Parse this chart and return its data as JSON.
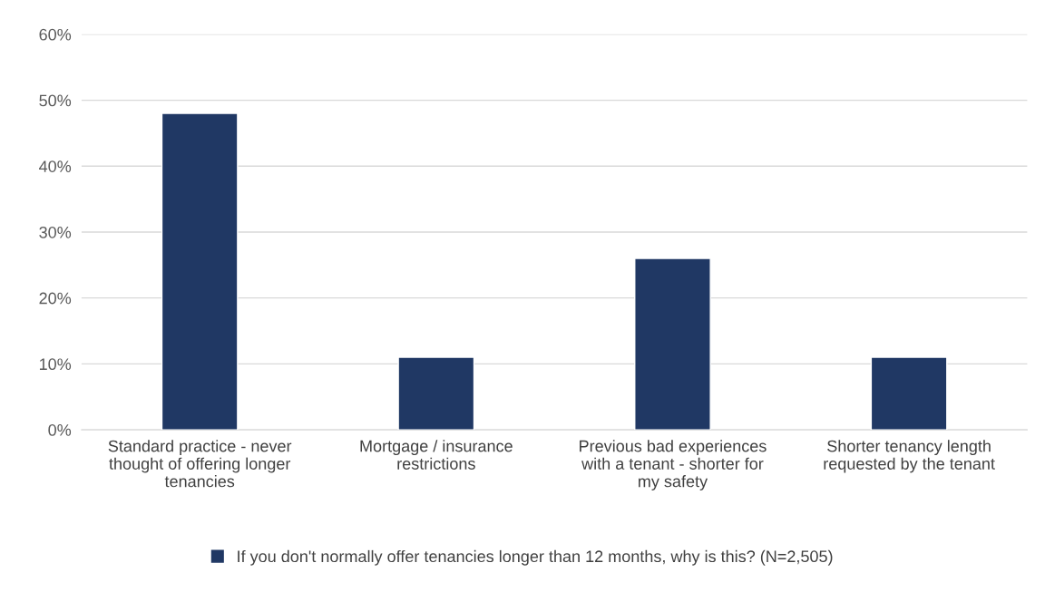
{
  "chart_data": {
    "type": "bar",
    "categories": [
      "Standard practice - never\nthought of offering longer\ntenancies",
      "Mortgage / insurance\nrestrictions",
      "Previous bad experiences\nwith a tenant - shorter for\nmy safety",
      "Shorter tenancy length\nrequested by the tenant"
    ],
    "series": [
      {
        "name": "If you don't normally offer tenancies longer than 12 months, why is this? (N=2,505)",
        "color": "#203864",
        "values": [
          48,
          11,
          26,
          11
        ]
      }
    ],
    "ylim": [
      0,
      60
    ],
    "yticks": [
      {
        "value": 0,
        "label": "0%"
      },
      {
        "value": 10,
        "label": "10%"
      },
      {
        "value": 20,
        "label": "20%"
      },
      {
        "value": 30,
        "label": "30%"
      },
      {
        "value": 40,
        "label": "40%"
      },
      {
        "value": 50,
        "label": "50%"
      },
      {
        "value": 60,
        "label": "60%"
      }
    ],
    "grid": "y",
    "legend": "bottom"
  }
}
